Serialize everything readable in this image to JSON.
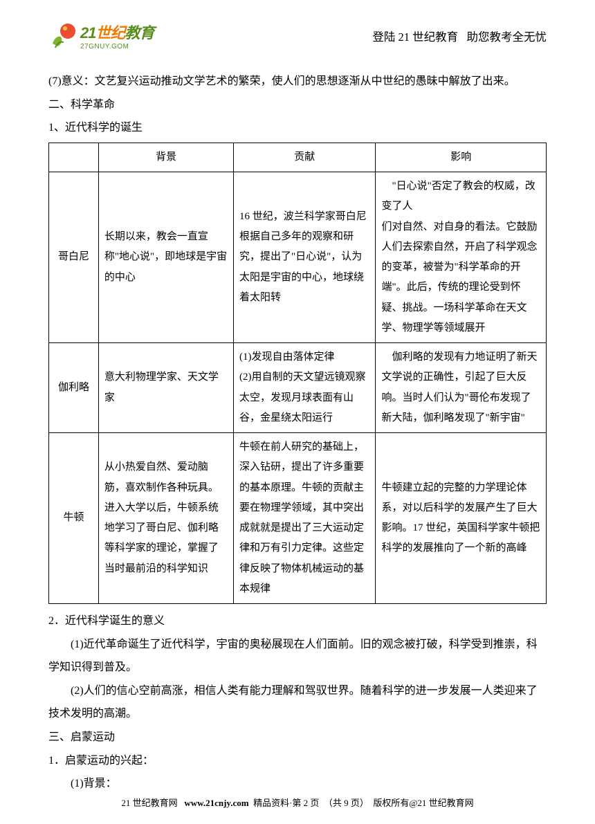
{
  "header": {
    "logo_main_a": "21",
    "logo_main_b": "世纪",
    "logo_main_c": "教育",
    "logo_url": "27GNUY.GOM",
    "slogan_a": "登陆 21 世纪教育",
    "slogan_b": "助您教考全无忧"
  },
  "body": {
    "p7": "(7)意义：文艺复兴运动推动文学艺术的繁荣，使人们的思想逐渐从中世纪的愚昧中解放了出来。",
    "h2": "二、科学革命",
    "h2_1": "1、近代科学的诞生",
    "h2_2": "2．近代科学诞生的意义",
    "p2_2a": "(1)近代革命诞生了近代科学，宇宙的奥秘展现在人们面前。旧的观念被打破，科学受到推崇，科学知识得到普及。",
    "p2_2b": "(2)人们的信心空前高涨，相信人类有能力理解和驾驭世界。随着科学的进一步发展一人类迎来了技术发明的高潮。",
    "h3": "三、启蒙运动",
    "h3_1": "1．启蒙运动的兴起：",
    "h3_1a": "(1)背景："
  },
  "table": {
    "headers": [
      "",
      "背景",
      "贡献",
      "影响"
    ],
    "rows": [
      {
        "name": "哥白尼",
        "bg": "长期以来，教会一直宣称\"地心说\"，即地球是宇宙的中心",
        "contrib": "16 世纪，波兰科学家哥白尼根据自己多年的观察和研究，提出了\"日心说\"，认为太阳是宇宙的中心，地球绕着太阳转",
        "impact": "　\"日心说\"否定了教会的权威，改变了人\n们对自然、对自身的看法。它鼓励人们去探索自然，开启了科学观念的变革，被誉为\"科学革命的开端\"。此后，传统的理论受到怀疑、挑战。一场科学革命在天文学、物理学等领域展开"
      },
      {
        "name": "伽利略",
        "bg": "意大利物理学家、天文学家",
        "contrib": "(1)发现自由落体定律\n(2)用自制的天文望远镜观察太空，发现月球表面有山谷，金星绕太阳运行",
        "impact": "　伽利略的发现有力地证明了新天文学说的正确性，引起了巨大反响。当时人们认为\"哥伦布发现了新大陆，伽利略发现了\"新宇宙\""
      },
      {
        "name": "牛顿",
        "bg": "从小热爱自然、爱动脑筋，喜欢制作各种玩具。进入大学以后，牛顿系统地学习了哥白尼、伽利略等科学家的理论，掌握了\n当时最前沿的科学知识",
        "contrib": "牛顿在前人研究的基础上，深入钻研，提出了许多重要的基本原理。牛顿的贡献主要在物理学领域，其中突出成就就是提出了三大运动定律和万有引力定律。这些定律反映了物体机械运动的基本规律",
        "impact": "牛顿建立起的完整的力学理论体系，对以后科学的发展产生了巨大影响。17 世纪，英国科学家牛顿把科学的发展推向了一个新的高峰"
      }
    ]
  },
  "footer": {
    "site": "21 世纪教育网",
    "url": "www.21cnjy.com",
    "mid": "精品资料·第 2 页　（共 9 页）　版权所有@21 世纪教育网"
  },
  "colors": {
    "logo_green": "#5a8c1e",
    "logo_orange": "#ef7c00",
    "text": "#000000",
    "bg": "#ffffff",
    "border": "#000000"
  }
}
